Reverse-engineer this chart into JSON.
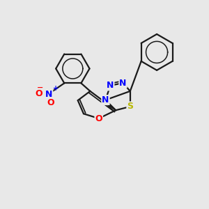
{
  "background_color": "#e8e8e8",
  "bond_color": "#1a1a1a",
  "bond_width": 1.6,
  "N_color": "#0000ff",
  "S_color": "#b8b800",
  "O_color": "#ff0000",
  "figsize": [
    3.0,
    3.0
  ],
  "dpi": 100,
  "xlim": [
    0,
    10
  ],
  "ylim": [
    0,
    10
  ]
}
